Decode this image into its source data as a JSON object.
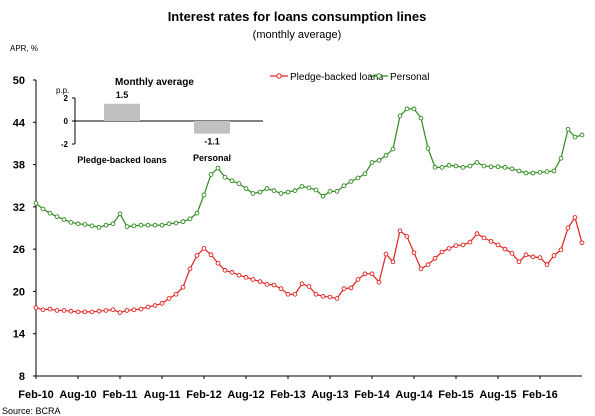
{
  "chart_data": {
    "type": "line",
    "title": "Interest rates for loans consumption lines",
    "subtitle": "(monthly average)",
    "ylabel": "APR, %",
    "ylim": [
      8,
      50
    ],
    "yticks": [
      8,
      14,
      20,
      26,
      32,
      38,
      44,
      50
    ],
    "xtick_labels": [
      "Feb-10",
      "Aug-10",
      "Feb-11",
      "Aug-11",
      "Feb-12",
      "Aug-12",
      "Feb-13",
      "Aug-13",
      "Feb-14",
      "Aug-14",
      "Feb-15",
      "Aug-15",
      "Feb-16"
    ],
    "grid": false,
    "legend_position": "top-right",
    "series": [
      {
        "name": "Pledge-backed loans",
        "color": "#e2201c",
        "values": [
          17.7,
          17.4,
          17.5,
          17.3,
          17.3,
          17.2,
          17.1,
          17.1,
          17.1,
          17.2,
          17.3,
          17.4,
          17.0,
          17.3,
          17.4,
          17.5,
          17.8,
          18.0,
          18.3,
          19.0,
          19.6,
          20.6,
          23.2,
          25.1,
          26.1,
          25.2,
          24.0,
          23.0,
          22.7,
          22.3,
          22.0,
          21.7,
          21.4,
          21.0,
          20.9,
          20.4,
          19.6,
          19.6,
          21.1,
          20.7,
          19.6,
          19.3,
          19.2,
          19.0,
          20.4,
          20.5,
          21.7,
          22.5,
          22.5,
          21.3,
          25.3,
          24.2,
          28.6,
          27.8,
          25.5,
          23.2,
          23.8,
          24.7,
          25.6,
          26.1,
          26.5,
          26.6,
          27.0,
          28.2,
          27.6,
          27.1,
          26.6,
          26.0,
          25.4,
          24.2,
          25.2,
          24.9,
          24.8,
          23.8,
          25.1,
          25.9,
          29.0,
          30.5,
          26.9
        ]
      },
      {
        "name": "Personal",
        "color": "#2e8b1f",
        "values": [
          32.5,
          31.7,
          31.1,
          30.6,
          30.2,
          29.8,
          29.6,
          29.5,
          29.3,
          29.1,
          29.4,
          29.6,
          31.0,
          29.2,
          29.3,
          29.4,
          29.4,
          29.4,
          29.4,
          29.6,
          29.7,
          29.9,
          30.3,
          31.1,
          33.7,
          36.6,
          37.5,
          36.2,
          35.7,
          35.3,
          34.6,
          33.9,
          34.1,
          34.6,
          34.3,
          33.9,
          34.1,
          34.3,
          34.9,
          34.7,
          34.4,
          33.5,
          34.2,
          34.2,
          35.0,
          35.6,
          36.1,
          36.7,
          38.3,
          38.6,
          39.3,
          40.2,
          44.9,
          45.9,
          45.9,
          44.6,
          40.3,
          37.6,
          37.6,
          37.9,
          37.8,
          37.6,
          37.8,
          38.3,
          37.8,
          37.7,
          37.7,
          37.6,
          37.4,
          37.1,
          36.8,
          36.8,
          36.9,
          37.0,
          37.1,
          38.9,
          43.0,
          41.9,
          42.2
        ]
      }
    ],
    "inset": {
      "title": "Monthly average",
      "unit": "p.p.",
      "ylim": [
        -2,
        2
      ],
      "yticks": [
        "2",
        "0",
        "-2"
      ],
      "bars": [
        {
          "label": "Pledge-backed loans",
          "value": 1.5,
          "value_label": "1.5"
        },
        {
          "label": "Personal",
          "value": -1.1,
          "value_label": "-1.1"
        }
      ]
    }
  },
  "source": "Source: BCRA"
}
